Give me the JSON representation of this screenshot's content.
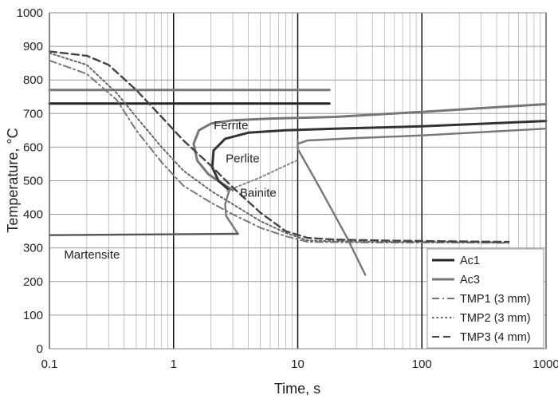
{
  "chart_data": {
    "type": "line",
    "xlabel": "Time, s",
    "ylabel": "Temperature, °C",
    "xscale": "log",
    "xlim": [
      0.1,
      1000
    ],
    "ylim": [
      0,
      1000
    ],
    "x_ticks": [
      {
        "value": 0.1,
        "label": "0.1"
      },
      {
        "value": 1,
        "label": "1"
      },
      {
        "value": 10,
        "label": "10"
      },
      {
        "value": 100,
        "label": "100"
      },
      {
        "value": 1000,
        "label": "1000"
      }
    ],
    "y_ticks": [
      {
        "value": 0,
        "label": "0"
      },
      {
        "value": 100,
        "label": "100"
      },
      {
        "value": 200,
        "label": "200"
      },
      {
        "value": 300,
        "label": "300"
      },
      {
        "value": 400,
        "label": "400"
      },
      {
        "value": 500,
        "label": "500"
      },
      {
        "value": 600,
        "label": "600"
      },
      {
        "value": 700,
        "label": "700"
      },
      {
        "value": 800,
        "label": "800"
      },
      {
        "value": 900,
        "label": "900"
      },
      {
        "value": 1000,
        "label": "1000"
      }
    ],
    "grid": true,
    "legend_position": "bottom-right",
    "legend": [
      {
        "label": "Ac1",
        "color": "#222222",
        "dash": "solid"
      },
      {
        "label": "Ac3",
        "color": "#777777",
        "dash": "solid"
      },
      {
        "label": "TMP1 (3 mm)",
        "color": "#777777",
        "dash": "dashdot"
      },
      {
        "label": "TMP2 (3 mm)",
        "color": "#666666",
        "dash": "dotted"
      },
      {
        "label": "TMP3 (4 mm)",
        "color": "#444444",
        "dash": "dashed"
      }
    ],
    "series": [
      {
        "name": "Ac1",
        "color": "#222222",
        "dash": "solid",
        "width": 3,
        "points": [
          [
            0.1,
            730
          ],
          [
            18,
            730
          ]
        ]
      },
      {
        "name": "Ac3",
        "color": "#777777",
        "dash": "solid",
        "width": 3,
        "points": [
          [
            0.1,
            770
          ],
          [
            18,
            770
          ]
        ]
      },
      {
        "name": "TMP1 (3 mm)",
        "color": "#777777",
        "dash": "dashdot",
        "width": 2,
        "points": [
          [
            0.1,
            858
          ],
          [
            0.2,
            818
          ],
          [
            0.35,
            740
          ],
          [
            0.5,
            650
          ],
          [
            0.8,
            555
          ],
          [
            1.2,
            485
          ],
          [
            2,
            435
          ],
          [
            3,
            400
          ],
          [
            5,
            360
          ],
          [
            8,
            335
          ],
          [
            12,
            318
          ],
          [
            20,
            317
          ],
          [
            50,
            316
          ],
          [
            150,
            316
          ],
          [
            500,
            315
          ]
        ]
      },
      {
        "name": "TMP2 (3 mm)",
        "color": "#666666",
        "dash": "dotted",
        "width": 2,
        "points": [
          [
            0.1,
            880
          ],
          [
            0.2,
            845
          ],
          [
            0.35,
            760
          ],
          [
            0.5,
            690
          ],
          [
            0.8,
            600
          ],
          [
            1.2,
            530
          ],
          [
            2,
            470
          ],
          [
            3,
            430
          ],
          [
            5,
            380
          ],
          [
            8,
            345
          ],
          [
            12,
            322
          ],
          [
            20,
            320
          ],
          [
            50,
            318
          ],
          [
            150,
            318
          ],
          [
            500,
            316
          ]
        ]
      },
      {
        "name": "TMP3 (4 mm)",
        "color": "#444444",
        "dash": "dashed",
        "width": 2.4,
        "points": [
          [
            0.1,
            885
          ],
          [
            0.2,
            872
          ],
          [
            0.3,
            845
          ],
          [
            0.5,
            770
          ],
          [
            0.8,
            690
          ],
          [
            1.2,
            620
          ],
          [
            2,
            545
          ],
          [
            3,
            480
          ],
          [
            5,
            405
          ],
          [
            8,
            350
          ],
          [
            12,
            330
          ],
          [
            20,
            325
          ],
          [
            50,
            322
          ],
          [
            150,
            320
          ],
          [
            500,
            318
          ]
        ]
      }
    ],
    "phase_curves": [
      {
        "name": "ferrite-boundary",
        "color": "#777777",
        "width": 3,
        "points": [
          [
            3.0,
            472
          ],
          [
            2.5,
            490
          ],
          [
            1.9,
            520
          ],
          [
            1.55,
            560
          ],
          [
            1.45,
            610
          ],
          [
            1.6,
            650
          ],
          [
            2.0,
            670
          ],
          [
            3.0,
            680
          ],
          [
            6,
            685
          ],
          [
            20,
            690
          ],
          [
            100,
            705
          ],
          [
            1000,
            728
          ]
        ]
      },
      {
        "name": "perlite-boundary",
        "color": "#333333",
        "width": 3,
        "points": [
          [
            2.8,
            472
          ],
          [
            2.3,
            500
          ],
          [
            2.05,
            540
          ],
          [
            2.1,
            590
          ],
          [
            2.6,
            625
          ],
          [
            4,
            643
          ],
          [
            8,
            650
          ],
          [
            20,
            655
          ],
          [
            100,
            662
          ],
          [
            1000,
            678
          ]
        ]
      },
      {
        "name": "perlite-start",
        "color": "#777777",
        "width": 2.4,
        "points": [
          [
            10,
            610
          ],
          [
            12,
            620
          ],
          [
            30,
            627
          ],
          [
            100,
            635
          ],
          [
            1000,
            655
          ]
        ]
      },
      {
        "name": "bainite-start",
        "color": "#777777",
        "width": 2.4,
        "points": [
          [
            2.8,
            470
          ],
          [
            2.6,
            430
          ],
          [
            2.65,
            395
          ],
          [
            3.0,
            365
          ],
          [
            3.3,
            342
          ]
        ]
      },
      {
        "name": "bainite-finish",
        "color": "#777777",
        "width": 2.4,
        "points": [
          [
            10,
            620
          ],
          [
            10,
            595
          ],
          [
            15,
            480
          ],
          [
            25,
            330
          ],
          [
            35,
            220
          ]
        ]
      },
      {
        "name": "martensite-start",
        "color": "#555555",
        "width": 2.4,
        "points": [
          [
            0.1,
            338
          ],
          [
            3.3,
            342
          ]
        ]
      },
      {
        "name": "bainite-dotted-guide",
        "color": "#888888",
        "width": 2,
        "dash": "dotted",
        "points": [
          [
            2.7,
            470
          ],
          [
            5,
            510
          ],
          [
            10,
            562
          ]
        ]
      }
    ],
    "annotations": [
      {
        "text": "Ferrite",
        "x": 2.9,
        "y": 653
      },
      {
        "text": "Perlite",
        "x": 3.6,
        "y": 555
      },
      {
        "text": "Bainite",
        "x": 4.8,
        "y": 452
      },
      {
        "text": "Martensite",
        "x": 0.22,
        "y": 268
      }
    ]
  }
}
